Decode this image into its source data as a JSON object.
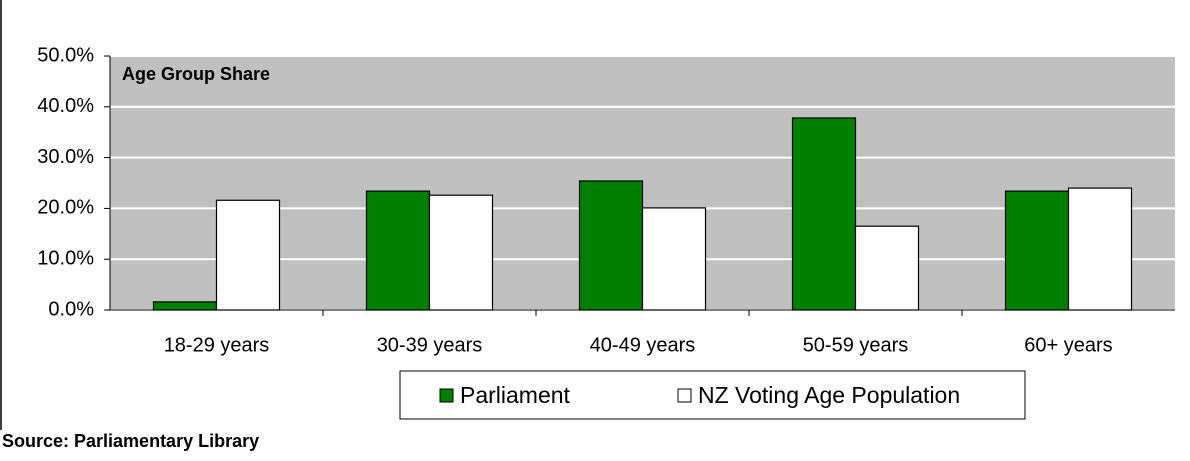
{
  "chart_data": {
    "type": "bar",
    "annotation": "Age Group Share",
    "source": "Source: Parliamentary Library",
    "categories": [
      "18-29 years",
      "30-39 years",
      "40-49 years",
      "50-59 years",
      "60+ years"
    ],
    "series": [
      {
        "name": "Parliament",
        "color": "#008000",
        "values": [
          1.6,
          23.4,
          25.4,
          37.8,
          23.4
        ]
      },
      {
        "name": "NZ Voting Age Population",
        "color": "#ffffff",
        "values": [
          21.6,
          22.6,
          20.1,
          16.5,
          24.0
        ]
      }
    ],
    "ylim": [
      0,
      50
    ],
    "yticks": [
      {
        "value": 0,
        "label": "0.0%"
      },
      {
        "value": 10,
        "label": "10.0%"
      },
      {
        "value": 20,
        "label": "20.0%"
      },
      {
        "value": 30,
        "label": "30.0%"
      },
      {
        "value": 40,
        "label": "40.0%"
      },
      {
        "value": 50,
        "label": "50.0%"
      }
    ],
    "grid": true,
    "legend": "bottom"
  }
}
